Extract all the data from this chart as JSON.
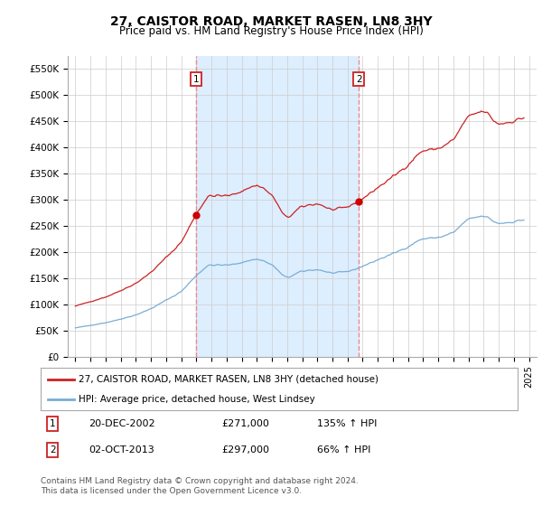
{
  "title1": "27, CAISTOR ROAD, MARKET RASEN, LN8 3HY",
  "title2": "Price paid vs. HM Land Registry's House Price Index (HPI)",
  "legend_line1": "27, CAISTOR ROAD, MARKET RASEN, LN8 3HY (detached house)",
  "legend_line2": "HPI: Average price, detached house, West Lindsey",
  "sale1_date": "20-DEC-2002",
  "sale1_price": "£271,000",
  "sale1_hpi": "135% ↑ HPI",
  "sale2_date": "02-OCT-2013",
  "sale2_price": "£297,000",
  "sale2_hpi": "66% ↑ HPI",
  "footer1": "Contains HM Land Registry data © Crown copyright and database right 2024.",
  "footer2": "This data is licensed under the Open Government Licence v3.0.",
  "hpi_color": "#7aadd4",
  "sale_color": "#cc2222",
  "fill_color": "#ddeeff",
  "marker_color": "#cc0000",
  "vline_color": "#ee8888",
  "background_color": "#ffffff",
  "grid_color": "#cccccc",
  "ylim": [
    0,
    575000
  ],
  "yticks": [
    0,
    50000,
    100000,
    150000,
    200000,
    250000,
    300000,
    350000,
    400000,
    450000,
    500000,
    550000
  ],
  "ytick_labels": [
    "£0",
    "£50K",
    "£100K",
    "£150K",
    "£200K",
    "£250K",
    "£300K",
    "£350K",
    "£400K",
    "£450K",
    "£500K",
    "£550K"
  ],
  "sale1_x": 2002.97,
  "sale1_y": 271000,
  "sale2_x": 2013.75,
  "sale2_y": 297000,
  "xlim": [
    1994.5,
    2025.5
  ],
  "xticks": [
    1995,
    1996,
    1997,
    1998,
    1999,
    2000,
    2001,
    2002,
    2003,
    2004,
    2005,
    2006,
    2007,
    2008,
    2009,
    2010,
    2011,
    2012,
    2013,
    2014,
    2015,
    2016,
    2017,
    2018,
    2019,
    2020,
    2021,
    2022,
    2023,
    2024,
    2025
  ]
}
